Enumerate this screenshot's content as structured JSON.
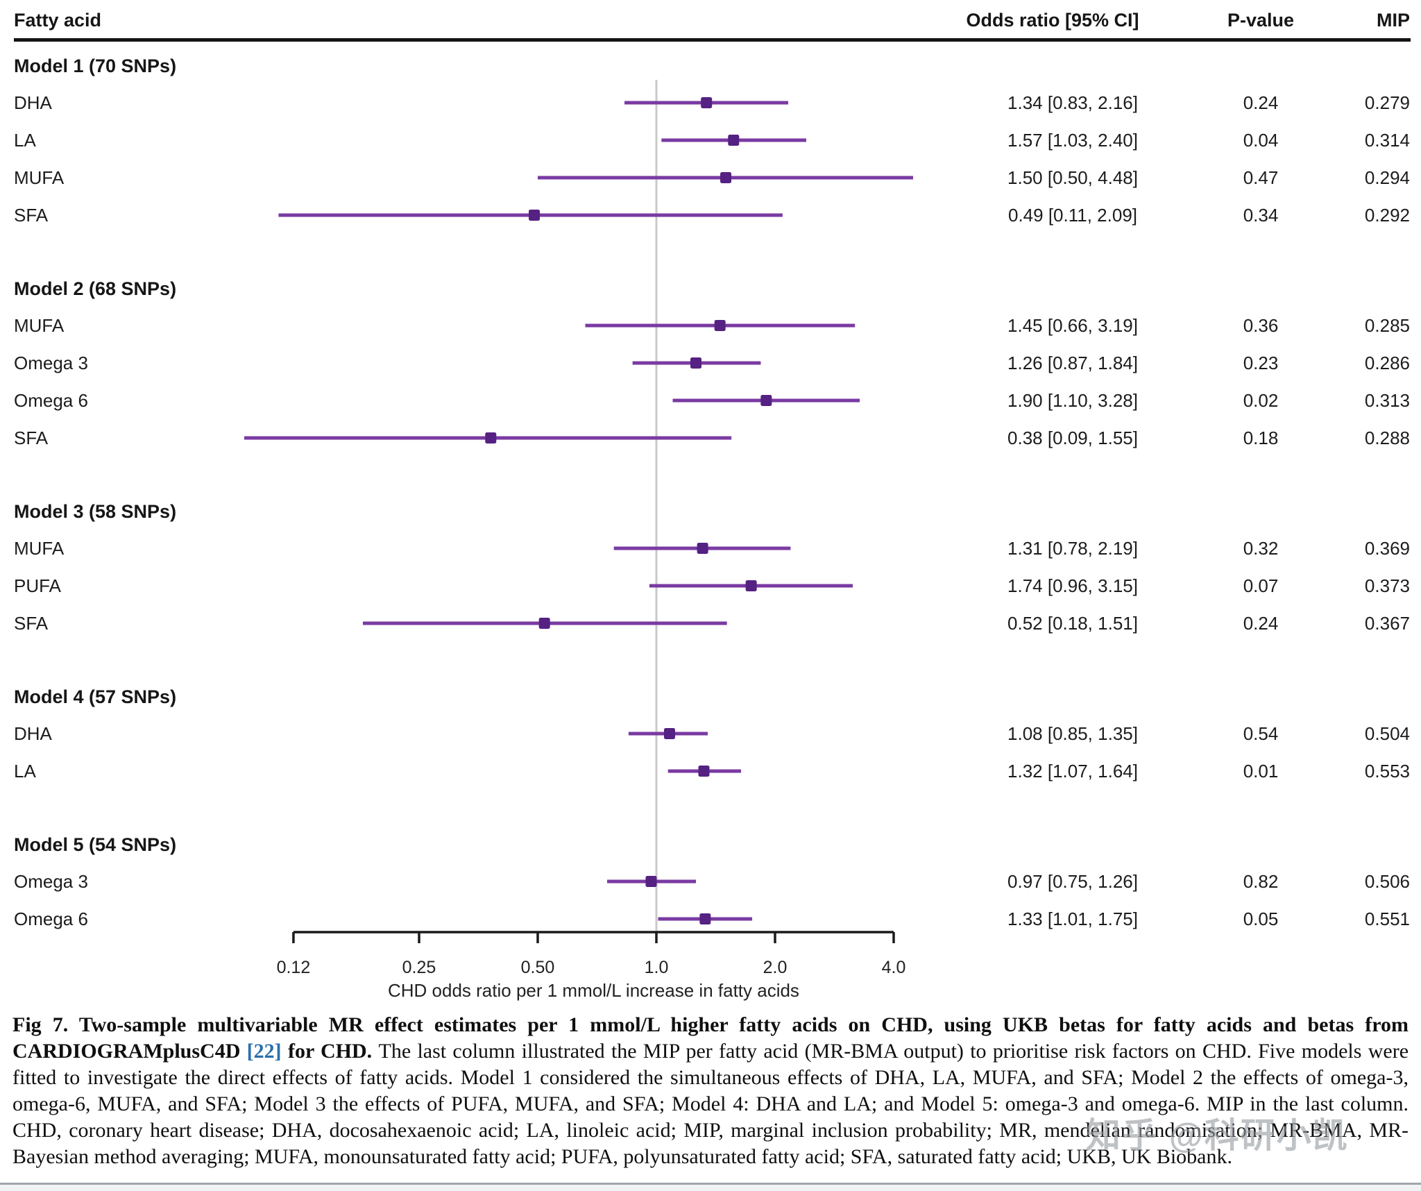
{
  "header": {
    "fatty_acid": "Fatty acid",
    "odds_ratio": "Odds ratio [95% CI]",
    "p_value": "P-value",
    "mip": "MIP"
  },
  "colors": {
    "ci_line": "#7a3aa2",
    "marker": "#552182",
    "reference_line": "#c9c9c9",
    "axis": "#1a1a1a",
    "link_blue": "#2a6fad",
    "watermark_gray": "#969ba0",
    "bottom_rule_gray": "#9fa5aa"
  },
  "chart_data": {
    "type": "forest",
    "xlabel": "CHD odds ratio per 1 mmol/L increase in fatty acids",
    "scale": "log",
    "x_ticks": [
      0.12,
      0.25,
      0.5,
      1.0,
      2.0,
      4.0
    ],
    "x_tick_labels": [
      "0.12",
      "0.25",
      "0.50",
      "1.0",
      "2.0",
      "4.0"
    ],
    "reference_line": 1.0,
    "xlim": [
      0.09,
      4.6
    ],
    "groups": [
      {
        "label": "Model 1 (70 SNPs)",
        "rows": [
          {
            "label": "DHA",
            "or": 1.34,
            "lo": 0.83,
            "hi": 2.16,
            "or_text": "1.34 [0.83, 2.16]",
            "p": "0.24",
            "mip": "0.279"
          },
          {
            "label": "LA",
            "or": 1.57,
            "lo": 1.03,
            "hi": 2.4,
            "or_text": "1.57 [1.03, 2.40]",
            "p": "0.04",
            "mip": "0.314"
          },
          {
            "label": "MUFA",
            "or": 1.5,
            "lo": 0.5,
            "hi": 4.48,
            "or_text": "1.50 [0.50, 4.48]",
            "p": "0.47",
            "mip": "0.294"
          },
          {
            "label": "SFA",
            "or": 0.49,
            "lo": 0.11,
            "hi": 2.09,
            "or_text": "0.49 [0.11, 2.09]",
            "p": "0.34",
            "mip": "0.292"
          }
        ]
      },
      {
        "label": "Model 2 (68 SNPs)",
        "rows": [
          {
            "label": "MUFA",
            "or": 1.45,
            "lo": 0.66,
            "hi": 3.19,
            "or_text": "1.45 [0.66, 3.19]",
            "p": "0.36",
            "mip": "0.285"
          },
          {
            "label": "Omega 3",
            "or": 1.26,
            "lo": 0.87,
            "hi": 1.84,
            "or_text": "1.26 [0.87, 1.84]",
            "p": "0.23",
            "mip": "0.286"
          },
          {
            "label": "Omega 6",
            "or": 1.9,
            "lo": 1.1,
            "hi": 3.28,
            "or_text": "1.90 [1.10, 3.28]",
            "p": "0.02",
            "mip": "0.313"
          },
          {
            "label": "SFA",
            "or": 0.38,
            "lo": 0.09,
            "hi": 1.55,
            "or_text": "0.38 [0.09, 1.55]",
            "p": "0.18",
            "mip": "0.288"
          }
        ]
      },
      {
        "label": "Model 3 (58 SNPs)",
        "rows": [
          {
            "label": "MUFA",
            "or": 1.31,
            "lo": 0.78,
            "hi": 2.19,
            "or_text": "1.31 [0.78, 2.19]",
            "p": "0.32",
            "mip": "0.369"
          },
          {
            "label": "PUFA",
            "or": 1.74,
            "lo": 0.96,
            "hi": 3.15,
            "or_text": "1.74 [0.96, 3.15]",
            "p": "0.07",
            "mip": "0.373"
          },
          {
            "label": "SFA",
            "or": 0.52,
            "lo": 0.18,
            "hi": 1.51,
            "or_text": "0.52 [0.18, 1.51]",
            "p": "0.24",
            "mip": "0.367"
          }
        ]
      },
      {
        "label": "Model 4 (57 SNPs)",
        "rows": [
          {
            "label": "DHA",
            "or": 1.08,
            "lo": 0.85,
            "hi": 1.35,
            "or_text": "1.08 [0.85, 1.35]",
            "p": "0.54",
            "mip": "0.504"
          },
          {
            "label": "LA",
            "or": 1.32,
            "lo": 1.07,
            "hi": 1.64,
            "or_text": "1.32 [1.07, 1.64]",
            "p": "0.01",
            "mip": "0.553"
          }
        ]
      },
      {
        "label": "Model 5 (54 SNPs)",
        "rows": [
          {
            "label": "Omega 3",
            "or": 0.97,
            "lo": 0.75,
            "hi": 1.26,
            "or_text": "0.97 [0.75, 1.26]",
            "p": "0.82",
            "mip": "0.506"
          },
          {
            "label": "Omega 6",
            "or": 1.33,
            "lo": 1.01,
            "hi": 1.75,
            "or_text": "1.33 [1.01, 1.75]",
            "p": "0.05",
            "mip": "0.551"
          }
        ]
      }
    ]
  },
  "caption": {
    "runs": [
      {
        "style": "bold",
        "text": "Fig 7.  Two-sample multivariable MR effect estimates per 1 mmol/L higher fatty acids on CHD, using UKB betas for fatty acids and betas from CARDIOGRAMplusC4D "
      },
      {
        "style": "link",
        "text": "[22]"
      },
      {
        "style": "bold",
        "text": " for CHD. "
      },
      {
        "style": "normal",
        "text": "The last column illustrated the MIP per fatty acid (MR-BMA output) to prioritise risk factors on CHD. Five models were fitted to investigate the direct effects of fatty acids. Model 1 considered the simultaneous effects of DHA, LA, MUFA, and SFA; Model 2 the effects of omega-3, omega-6, MUFA, and SFA; Model 3 the effects of PUFA, MUFA, and SFA; Model 4: DHA and LA; and Model 5: omega-3 and omega-6. MIP in the last column. CHD, coronary heart disease; DHA, docosahexaenoic acid; LA, linoleic acid; MIP, marginal inclusion probability; MR, mendelian randomisation; MR-BMA, MR-Bayesian method averaging; MUFA, monounsaturated fatty acid; PUFA, polyunsaturated fatty acid; SFA, saturated fatty acid; UKB, UK Biobank."
      }
    ]
  },
  "watermark": "知乎 @科研小凯"
}
